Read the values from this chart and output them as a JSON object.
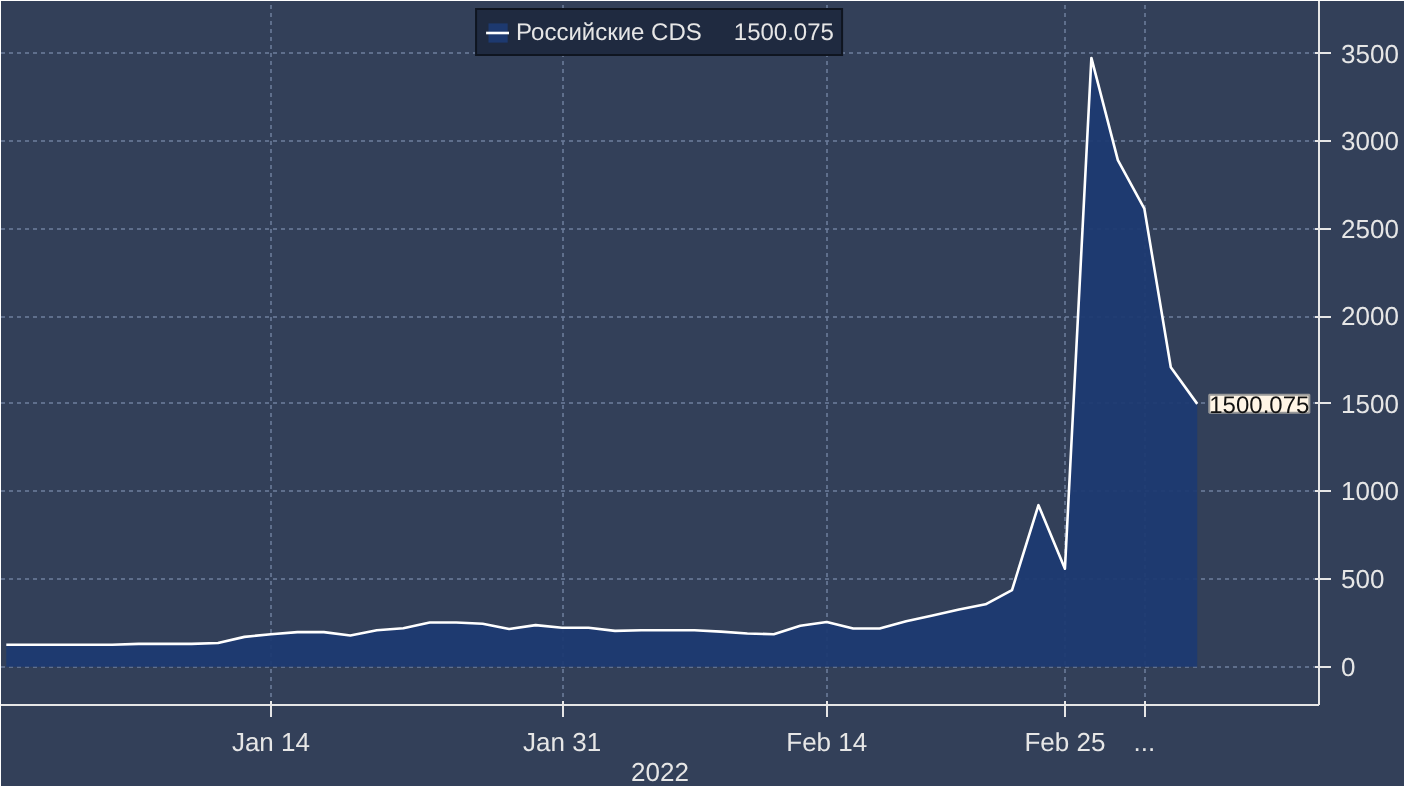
{
  "chart_data": {
    "type": "area",
    "xlabel": "2022",
    "categories": [
      null,
      null,
      null,
      null,
      null,
      null,
      null,
      null,
      null,
      null,
      "Jan 14",
      null,
      null,
      null,
      null,
      null,
      null,
      null,
      null,
      null,
      null,
      "Jan 31",
      null,
      null,
      null,
      null,
      null,
      null,
      null,
      null,
      null,
      "Feb 14",
      null,
      null,
      null,
      null,
      null,
      null,
      null,
      null,
      "Feb 25",
      null,
      null,
      "...",
      null,
      null,
      null,
      null
    ],
    "series": [
      {
        "name": "Российские CDS",
        "color": "#ffffff",
        "values": [
          125,
          125,
          125,
          125,
          125,
          130,
          130,
          130,
          135,
          170,
          185,
          197,
          197,
          178,
          208,
          219,
          252,
          252,
          245,
          215,
          237,
          222,
          222,
          204,
          208,
          208,
          208,
          200,
          189,
          185,
          233,
          255,
          218,
          218,
          259,
          292,
          326,
          356,
          437,
          922,
          559,
          3475,
          2892,
          2615,
          1709,
          1500.075,
          null,
          null
        ],
        "value_labels": [
          null,
          null,
          null,
          null,
          null,
          null,
          null,
          null,
          null,
          null,
          null,
          null,
          null,
          null,
          null,
          null,
          null,
          null,
          null,
          null,
          null,
          null,
          null,
          null,
          null,
          null,
          null,
          null,
          null,
          null,
          null,
          null,
          null,
          null,
          null,
          null,
          null,
          null,
          null,
          null,
          null,
          null,
          null,
          null,
          null,
          "1500.075",
          null,
          null
        ]
      }
    ],
    "ylim": [
      -219,
      3800
    ],
    "yticks": [
      0,
      500,
      1000,
      1500,
      2000,
      2500,
      3000,
      3500
    ],
    "grid": true,
    "legend": "top"
  }
}
